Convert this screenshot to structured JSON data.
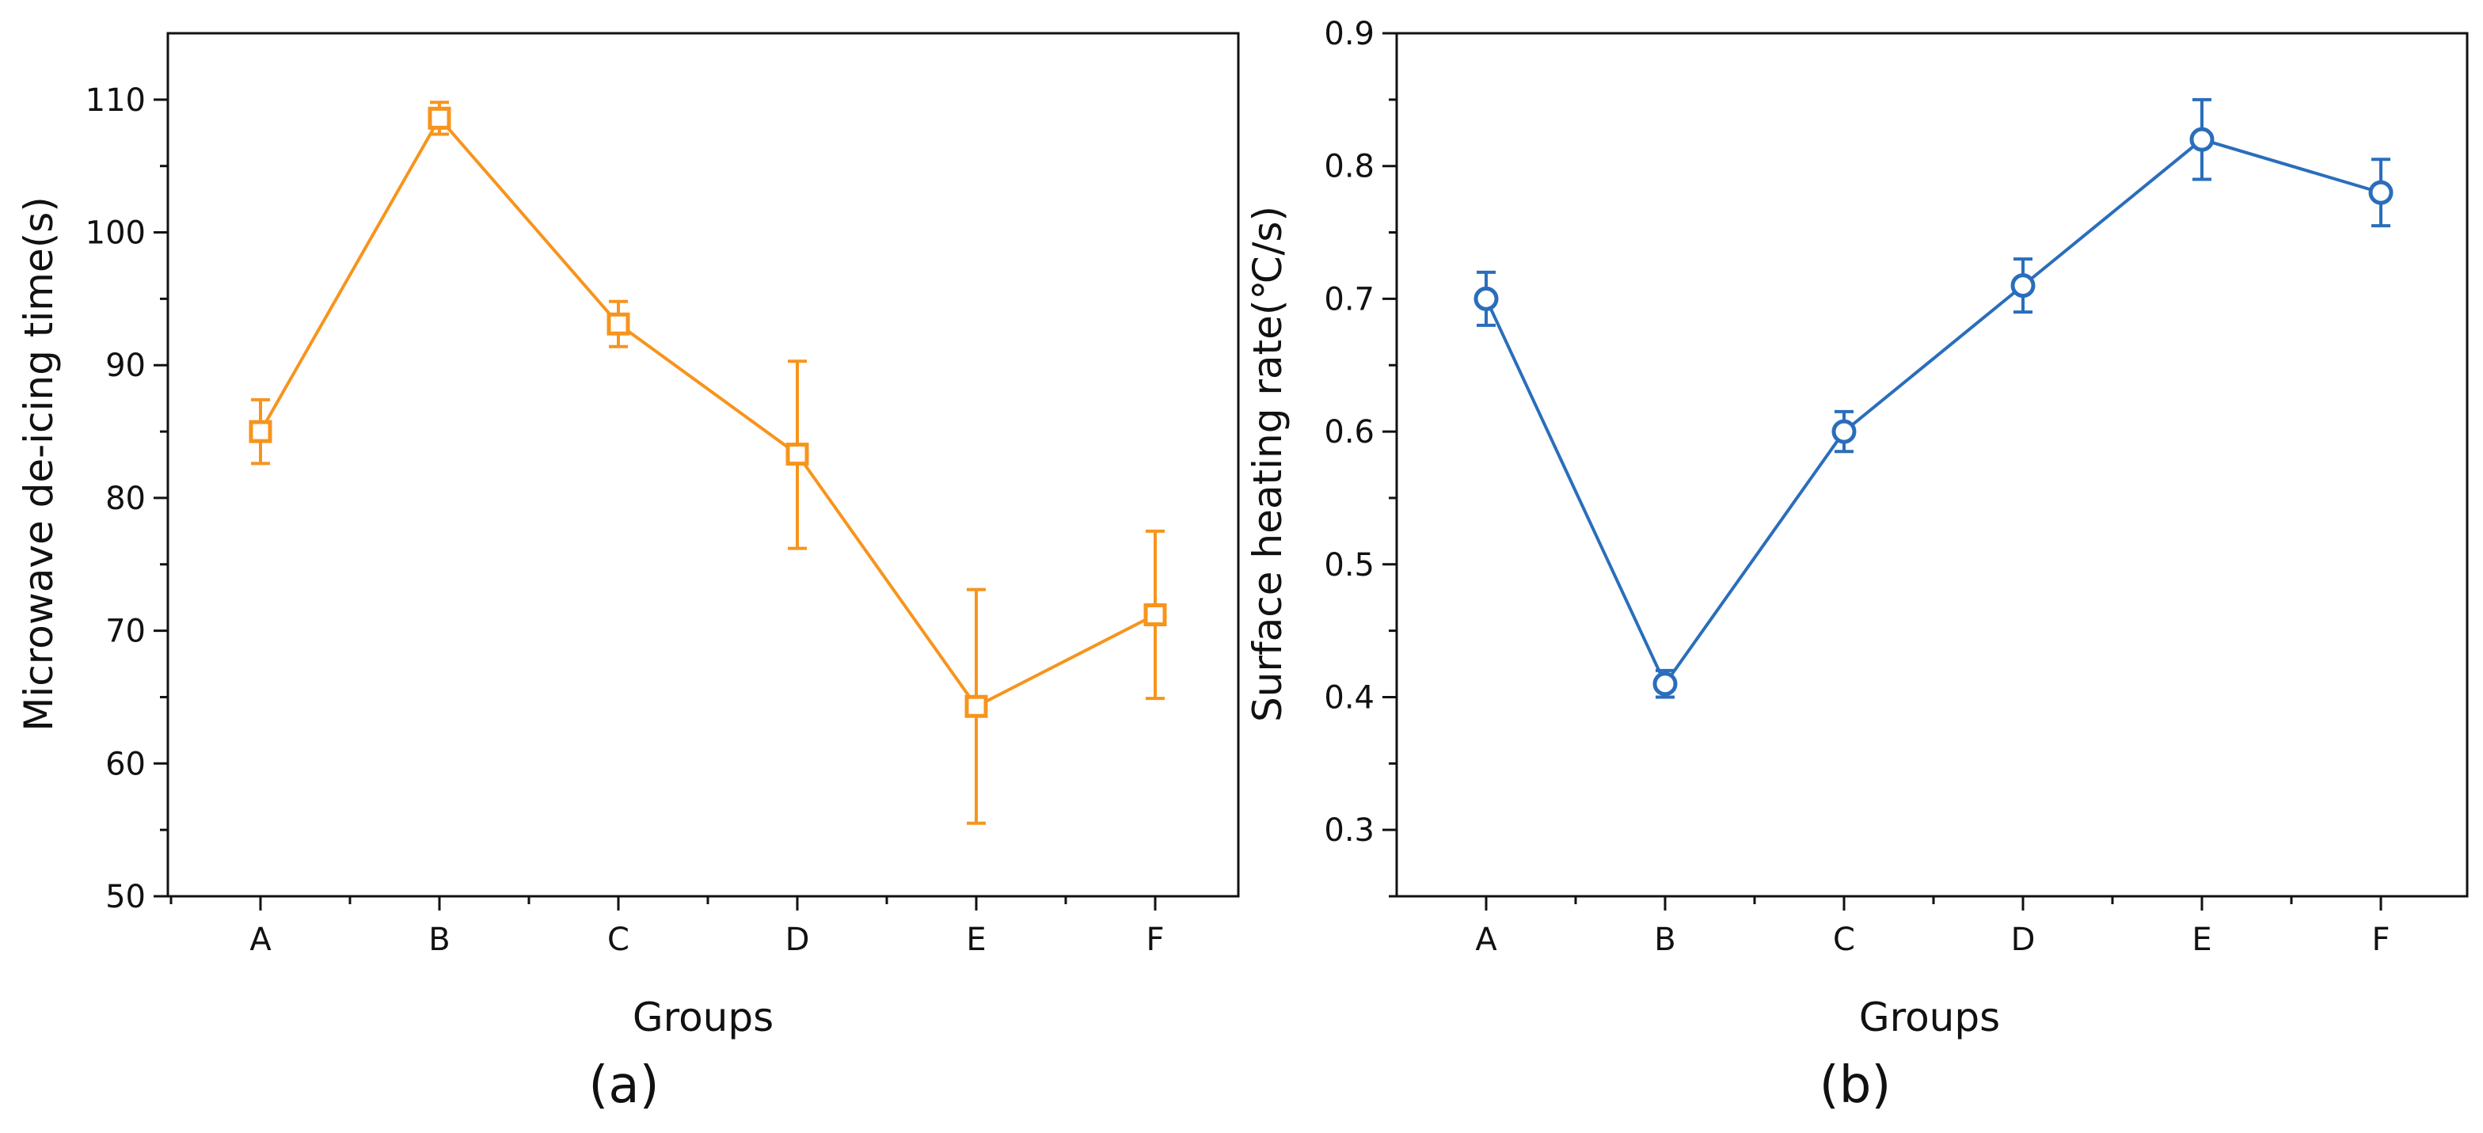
{
  "chart_data": [
    {
      "type": "line",
      "panel_label": "(a)",
      "xlabel": "Groups",
      "ylabel": "Microwave de-icing time(s)",
      "categories": [
        "A",
        "B",
        "C",
        "D",
        "E",
        "F"
      ],
      "ylim": [
        50,
        115
      ],
      "yticks": [
        50,
        60,
        70,
        80,
        90,
        100,
        110
      ],
      "marker": "square",
      "color": "#F7941D",
      "series": [
        {
          "name": "Microwave de-icing time",
          "values": [
            85.0,
            108.6,
            93.1,
            83.3,
            64.3,
            71.2
          ],
          "error_low": [
            82.6,
            107.4,
            91.4,
            76.2,
            55.5,
            64.9
          ],
          "error_high": [
            87.4,
            109.8,
            94.8,
            90.3,
            73.1,
            77.5
          ]
        }
      ]
    },
    {
      "type": "line",
      "panel_label": "(b)",
      "xlabel": "Groups",
      "ylabel": "Surface heating rate(℃/s)",
      "categories": [
        "A",
        "B",
        "C",
        "D",
        "E",
        "F"
      ],
      "ylim": [
        0.25,
        0.9
      ],
      "yticks": [
        "0.3",
        "0.4",
        "0.5",
        "0.6",
        "0.7",
        "0.8",
        "0.9"
      ],
      "marker": "circle",
      "color": "#2A6EBB",
      "series": [
        {
          "name": "Surface heating rate",
          "values": [
            0.7,
            0.41,
            0.6,
            0.71,
            0.82,
            0.78
          ],
          "error_low": [
            0.68,
            0.4,
            0.585,
            0.69,
            0.79,
            0.755
          ],
          "error_high": [
            0.72,
            0.42,
            0.615,
            0.73,
            0.85,
            0.805
          ]
        }
      ]
    }
  ]
}
